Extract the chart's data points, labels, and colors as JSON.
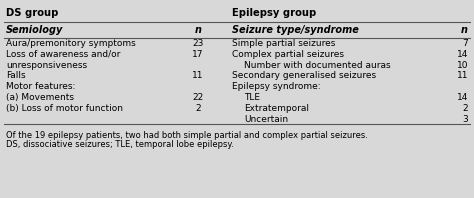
{
  "title_left": "DS group",
  "title_right": "Epilepsy group",
  "header_left_col1": "Semiology",
  "header_left_col2": "n",
  "header_right_col1": "Seizure type/syndrome",
  "header_right_col2": "n",
  "rows_left": [
    {
      "text": "Aura/premonitory symptoms",
      "n": "23",
      "indent": 0
    },
    {
      "text": "Loss of awareness and/or",
      "n": "17",
      "indent": 0
    },
    {
      "text": "unresponsiveness",
      "n": "",
      "indent": 0
    },
    {
      "text": "Falls",
      "n": "11",
      "indent": 0
    },
    {
      "text": "Motor features:",
      "n": "",
      "indent": 0
    },
    {
      "text": "(a) Movements",
      "n": "22",
      "indent": 0
    },
    {
      "text": "(b) Loss of motor function",
      "n": "2",
      "indent": 0
    }
  ],
  "rows_right": [
    {
      "text": "Simple partial seizures",
      "n": "7",
      "indent": 0
    },
    {
      "text": "Complex partial seizures",
      "n": "14",
      "indent": 0
    },
    {
      "text": "Number with documented auras",
      "n": "10",
      "indent": 1
    },
    {
      "text": "Secondary generalised seizures",
      "n": "11",
      "indent": 0
    },
    {
      "text": "Epilepsy syndrome:",
      "n": "",
      "indent": 0
    },
    {
      "text": "TLE",
      "n": "14",
      "indent": 1
    },
    {
      "text": "Extratemporal",
      "n": "2",
      "indent": 1
    },
    {
      "text": "Uncertain",
      "n": "3",
      "indent": 1
    }
  ],
  "footnote1": "Of the 19 epilepsy patients, two had both simple partial and complex partial seizures.",
  "footnote2": "DS, dissociative seizures; TLE, temporal lobe epilepsy.",
  "bg_color": "#d8d8d8",
  "font_size": 6.5,
  "header_font_size": 7.0,
  "title_font_size": 7.2
}
